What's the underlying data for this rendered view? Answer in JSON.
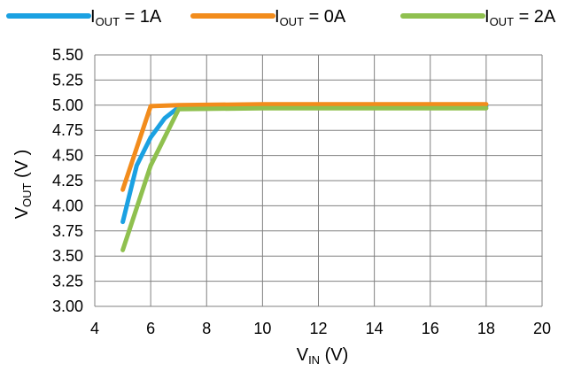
{
  "chart_data": {
    "type": "line",
    "xlabel": {
      "main": "V",
      "sub": "IN",
      "unit": " (V)"
    },
    "ylabel": {
      "main": "V",
      "sub": "OUT",
      "unit": " (V  )"
    },
    "xlim": [
      4,
      20
    ],
    "ylim": [
      3.0,
      5.5
    ],
    "x_ticks": [
      "4",
      "6",
      "8",
      "10",
      "12",
      "14",
      "16",
      "18",
      "20"
    ],
    "y_ticks": [
      "3.00",
      "3.25",
      "3.50",
      "3.75",
      "4.00",
      "4.25",
      "4.50",
      "4.75",
      "5.00",
      "5.25",
      "5.50"
    ],
    "grid": true,
    "legend_position": "top",
    "series": [
      {
        "name": {
          "main": "I",
          "sub": "OUT",
          "rest": " = 1A"
        },
        "color": "#1ba1e2",
        "x": [
          5,
          5.5,
          6,
          6.5,
          7,
          10,
          18
        ],
        "y": [
          3.84,
          4.4,
          4.68,
          4.87,
          4.98,
          4.99,
          4.99
        ]
      },
      {
        "name": {
          "main": "I",
          "sub": "OUT",
          "rest": " = 0A"
        },
        "color": "#f28c1c",
        "x": [
          5,
          6,
          7,
          10,
          18
        ],
        "y": [
          4.16,
          4.99,
          5.0,
          5.01,
          5.01
        ]
      },
      {
        "name": {
          "main": "I",
          "sub": "OUT",
          "rest": " = 2A"
        },
        "color": "#8fc04f",
        "x": [
          5,
          6,
          7,
          10,
          18
        ],
        "y": [
          3.56,
          4.4,
          4.96,
          4.97,
          4.97
        ]
      }
    ]
  }
}
